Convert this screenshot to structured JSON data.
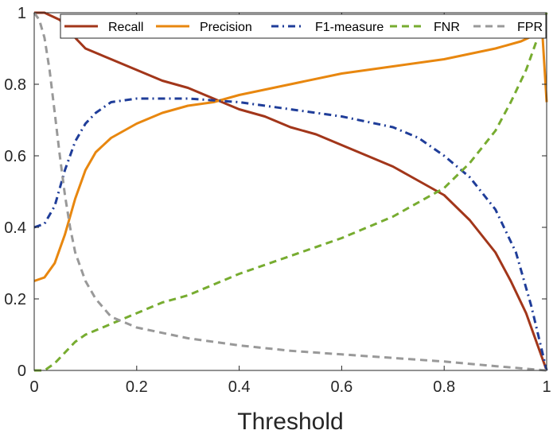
{
  "chart_data": {
    "type": "line",
    "title": "",
    "xlabel": "Threshold",
    "ylabel": "",
    "xlim": [
      0,
      1
    ],
    "ylim": [
      0,
      1
    ],
    "grid": false,
    "legend_position": "top",
    "x_ticks": [
      "0",
      "0.2",
      "0.4",
      "0.6",
      "0.8",
      "1"
    ],
    "y_ticks": [
      "0",
      "0.2",
      "0.4",
      "0.6",
      "0.8",
      "1"
    ],
    "series": [
      {
        "name": "Recall",
        "color": "#A2361A",
        "style": "solid",
        "x": [
          0,
          0.02,
          0.05,
          0.08,
          0.1,
          0.15,
          0.2,
          0.25,
          0.3,
          0.35,
          0.4,
          0.45,
          0.5,
          0.55,
          0.6,
          0.65,
          0.7,
          0.75,
          0.8,
          0.85,
          0.9,
          0.93,
          0.96,
          0.98,
          1.0
        ],
        "y": [
          1.0,
          1.0,
          0.98,
          0.93,
          0.9,
          0.87,
          0.84,
          0.81,
          0.79,
          0.76,
          0.73,
          0.71,
          0.68,
          0.66,
          0.63,
          0.6,
          0.57,
          0.53,
          0.49,
          0.42,
          0.33,
          0.25,
          0.16,
          0.08,
          0.0
        ]
      },
      {
        "name": "Precision",
        "color": "#E8870F",
        "style": "solid",
        "x": [
          0,
          0.02,
          0.04,
          0.06,
          0.08,
          0.1,
          0.12,
          0.15,
          0.2,
          0.25,
          0.3,
          0.35,
          0.4,
          0.5,
          0.6,
          0.7,
          0.8,
          0.9,
          0.95,
          0.98,
          0.99,
          1.0
        ],
        "y": [
          0.25,
          0.26,
          0.3,
          0.38,
          0.48,
          0.56,
          0.61,
          0.65,
          0.69,
          0.72,
          0.74,
          0.75,
          0.77,
          0.8,
          0.83,
          0.85,
          0.87,
          0.9,
          0.92,
          0.94,
          0.98,
          0.75
        ]
      },
      {
        "name": "F1-measure",
        "color": "#1F3D99",
        "style": "dashdot",
        "x": [
          0,
          0.02,
          0.04,
          0.06,
          0.08,
          0.1,
          0.12,
          0.15,
          0.2,
          0.3,
          0.4,
          0.5,
          0.6,
          0.7,
          0.75,
          0.8,
          0.85,
          0.9,
          0.94,
          0.97,
          1.0
        ],
        "y": [
          0.4,
          0.41,
          0.46,
          0.56,
          0.64,
          0.69,
          0.72,
          0.75,
          0.76,
          0.76,
          0.75,
          0.73,
          0.71,
          0.68,
          0.65,
          0.6,
          0.54,
          0.45,
          0.33,
          0.18,
          0.0
        ]
      },
      {
        "name": "FNR",
        "color": "#77AC30",
        "style": "dashed",
        "x": [
          0,
          0.02,
          0.04,
          0.06,
          0.08,
          0.1,
          0.15,
          0.2,
          0.25,
          0.3,
          0.35,
          0.4,
          0.5,
          0.6,
          0.7,
          0.75,
          0.8,
          0.85,
          0.9,
          0.93,
          0.96,
          0.98,
          1.0
        ],
        "y": [
          0.0,
          0.0,
          0.02,
          0.05,
          0.08,
          0.1,
          0.13,
          0.16,
          0.19,
          0.21,
          0.24,
          0.27,
          0.32,
          0.37,
          0.43,
          0.47,
          0.51,
          0.58,
          0.67,
          0.75,
          0.84,
          0.92,
          1.0
        ]
      },
      {
        "name": "FPR",
        "color": "#999999",
        "style": "dashed",
        "x": [
          0,
          0.01,
          0.02,
          0.03,
          0.04,
          0.05,
          0.06,
          0.07,
          0.08,
          0.1,
          0.12,
          0.15,
          0.2,
          0.3,
          0.4,
          0.5,
          0.6,
          0.7,
          0.8,
          0.9,
          1.0
        ],
        "y": [
          1.0,
          0.98,
          0.93,
          0.84,
          0.72,
          0.6,
          0.49,
          0.4,
          0.33,
          0.25,
          0.2,
          0.15,
          0.12,
          0.09,
          0.07,
          0.055,
          0.045,
          0.035,
          0.025,
          0.012,
          0.0
        ]
      }
    ]
  }
}
